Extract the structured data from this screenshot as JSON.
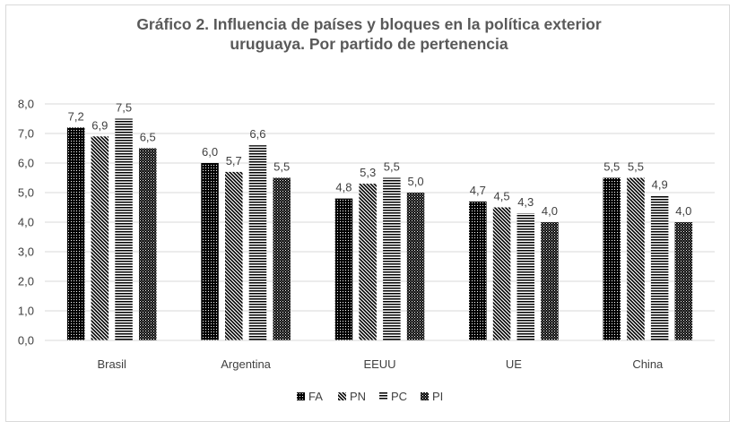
{
  "chart_data": {
    "type": "bar",
    "title_line1": "Gráfico 2. Influencia de países y bloques en la política exterior",
    "title_line2": "uruguaya. Por partido de pertenencia",
    "categories": [
      "Brasil",
      "Argentina",
      "EEUU",
      "UE",
      "China"
    ],
    "series": [
      {
        "name": "FA",
        "values": [
          7.2,
          6.0,
          4.8,
          4.7,
          5.5
        ],
        "labels": [
          "7,2",
          "6,0",
          "4,8",
          "4,7",
          "5,5"
        ],
        "pattern": "dense-dots"
      },
      {
        "name": "PN",
        "values": [
          6.9,
          5.7,
          5.3,
          4.5,
          5.5
        ],
        "labels": [
          "6,9",
          "5,7",
          "5,3",
          "4,5",
          "5,5"
        ],
        "pattern": "diagonal-lines"
      },
      {
        "name": "PC",
        "values": [
          7.5,
          6.6,
          5.5,
          4.3,
          4.9
        ],
        "labels": [
          "7,5",
          "6,6",
          "5,5",
          "4,3",
          "4,9"
        ],
        "pattern": "horizontal-lines"
      },
      {
        "name": "PI",
        "values": [
          6.5,
          5.5,
          5.0,
          4.0,
          4.0
        ],
        "labels": [
          "6,5",
          "5,5",
          "5,0",
          "4,0",
          "4,0"
        ],
        "pattern": "sparse-dots"
      }
    ],
    "yticks": [
      "0,0",
      "1,0",
      "2,0",
      "3,0",
      "4,0",
      "5,0",
      "6,0",
      "7,0",
      "8,0"
    ],
    "ylim": [
      0,
      8
    ],
    "grid": true,
    "legend_position": "bottom",
    "colors": {
      "bar": "#000000",
      "grid": "#d9d9d9",
      "text": "#404040",
      "title": "#595959"
    }
  }
}
